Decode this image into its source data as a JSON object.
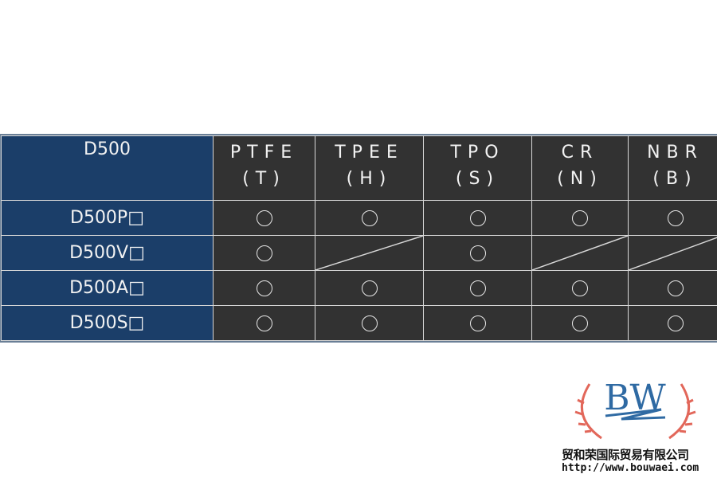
{
  "table": {
    "header_model": "D500",
    "materials": [
      {
        "name": "PTFE",
        "code": "(T)"
      },
      {
        "name": "TPEE",
        "code": "(H)"
      },
      {
        "name": "TPO",
        "code": "(S)"
      },
      {
        "name": "CR",
        "code": "(N)"
      },
      {
        "name": "NBR",
        "code": "(B)"
      }
    ],
    "rows": [
      {
        "model": "D500P□",
        "cells": [
          "○",
          "○",
          "○",
          "○",
          "○"
        ]
      },
      {
        "model": "D500V□",
        "cells": [
          "○",
          "/",
          "○",
          "/",
          "/"
        ]
      },
      {
        "model": "D500A□",
        "cells": [
          "○",
          "○",
          "○",
          "○",
          "○"
        ]
      },
      {
        "model": "D500S□",
        "cells": [
          "○",
          "○",
          "○",
          "○",
          "○"
        ]
      }
    ],
    "colors": {
      "model_bg": "#1b3e69",
      "cell_bg": "#323232"
    }
  },
  "logo": {
    "mark": "BW",
    "company": "贸和荣国际贸易有限公司",
    "url": "http://www.bouwaei.com"
  }
}
